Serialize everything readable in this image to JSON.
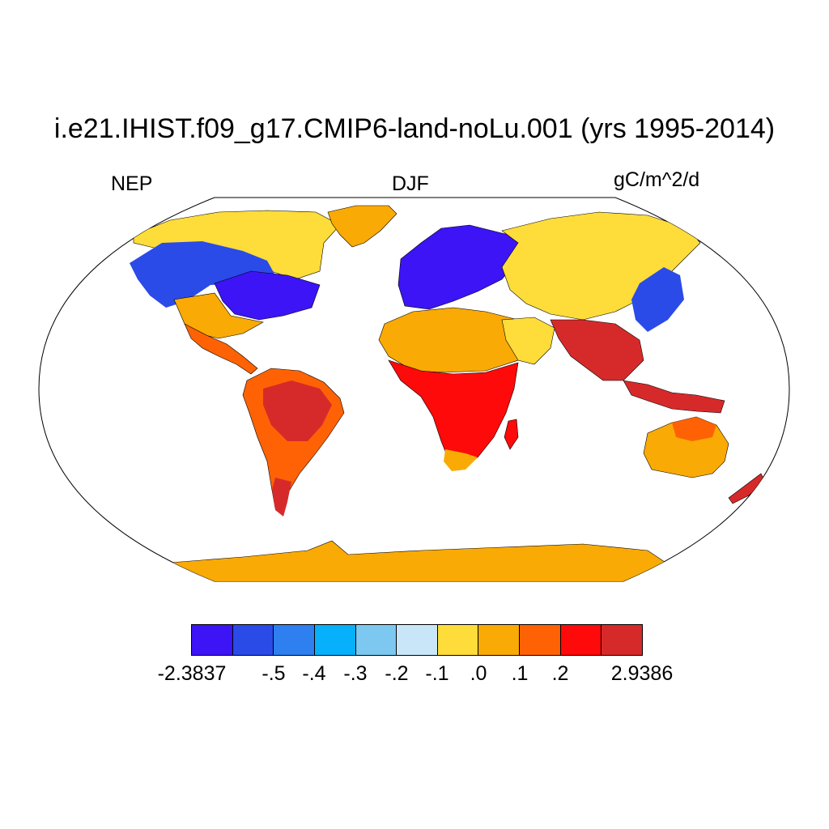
{
  "title": "i.e21.IHIST.f09_g17.CMIP6-land-noLu.001 (yrs 1995-2014)",
  "left_label": "NEP",
  "center_label": "DJF",
  "right_label": "gC/m^2/d",
  "colorbar": {
    "colors": [
      "#3c14f5",
      "#2a4be8",
      "#2e7ff0",
      "#06b0fa",
      "#7cc8f0",
      "#c8e6f8",
      "#fedc3a",
      "#faaa04",
      "#fe6205",
      "#fe0a0a",
      "#d62a2a"
    ],
    "labels": [
      "-2.3837",
      "-.5",
      "-.4",
      "-.3",
      "-.2",
      "-.1",
      ".0",
      ".1",
      ".2",
      "2.9386"
    ]
  },
  "map": {
    "projection": "Robinson",
    "ocean_color": "#ffffff",
    "regions": [
      {
        "name": "Greenland",
        "color": "#faaa04"
      },
      {
        "name": "Antarctica",
        "color": "#faaa04"
      },
      {
        "name": "Eastern North America",
        "color": "#3c14f5"
      },
      {
        "name": "Northern Canada",
        "color": "#fedc3a"
      },
      {
        "name": "Europe",
        "color": "#3c14f5"
      },
      {
        "name": "Siberia",
        "color": "#fedc3a"
      },
      {
        "name": "Sahara",
        "color": "#faaa04"
      },
      {
        "name": "Central Africa",
        "color": "#fe0a0a"
      },
      {
        "name": "Amazon",
        "color": "#d62a2a"
      },
      {
        "name": "South Asia",
        "color": "#d62a2a"
      },
      {
        "name": "Australia",
        "color": "#faaa04"
      }
    ]
  }
}
